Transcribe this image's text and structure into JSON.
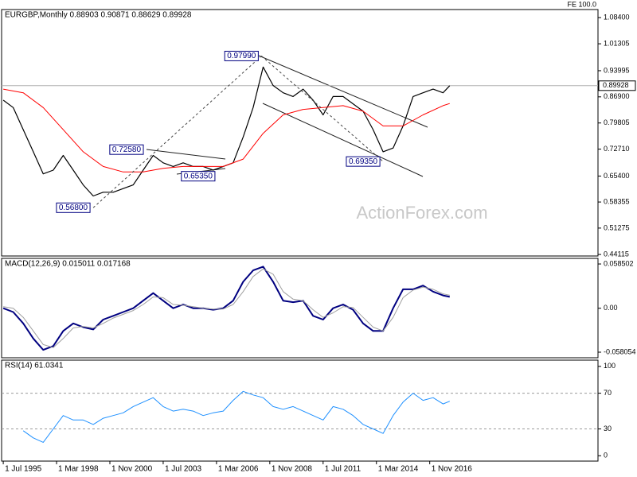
{
  "chart_data": [
    {
      "type": "line",
      "title": "EURGBP,Monthly  0.88903 0.90871 0.88629 0.89928",
      "label_right": "FE 100.0",
      "watermark": "ActionForex.com",
      "xlim": [
        -1,
        357
      ],
      "ylim": [
        0.437,
        1.106
      ],
      "yticks": [
        0.44115,
        0.51275,
        0.58355,
        {
          "value": 0.654,
          "label": "0.65400"
        },
        {
          "value": 0.7271,
          "label": "0.72710"
        },
        0.79805,
        {
          "value": 0.869,
          "label": "0.86900"
        },
        0.93995,
        1.01305,
        {
          "value": 1.084,
          "label": "1.08400"
        }
      ],
      "last_price": 0.89928,
      "series": [
        {
          "color": "#000000",
          "width": 1.2,
          "x": [
            0,
            6,
            12,
            18,
            24,
            30,
            36,
            42,
            48,
            54,
            60,
            66,
            72,
            78,
            84,
            90,
            96,
            102,
            108,
            114,
            120,
            126,
            132,
            138,
            144,
            150,
            156,
            162,
            168,
            174,
            180,
            186,
            192,
            198,
            204,
            210,
            216,
            222,
            228,
            234,
            240,
            246,
            252,
            258,
            264,
            268
          ],
          "values": [
            0.86,
            0.84,
            0.78,
            0.72,
            0.66,
            0.67,
            0.71,
            0.67,
            0.63,
            0.6,
            0.61,
            0.61,
            0.62,
            0.63,
            0.67,
            0.71,
            0.69,
            0.68,
            0.69,
            0.68,
            0.68,
            0.67,
            0.68,
            0.69,
            0.76,
            0.84,
            0.95,
            0.9,
            0.88,
            0.87,
            0.89,
            0.86,
            0.82,
            0.87,
            0.87,
            0.85,
            0.83,
            0.78,
            0.72,
            0.73,
            0.79,
            0.87,
            0.88,
            0.89,
            0.88,
            0.89928
          ]
        },
        {
          "color": "#ff0000",
          "width": 1,
          "x": [
            0,
            12,
            24,
            36,
            48,
            60,
            72,
            84,
            96,
            108,
            120,
            132,
            144,
            156,
            168,
            180,
            192,
            204,
            216,
            228,
            240,
            252,
            264,
            268
          ],
          "values": [
            0.89,
            0.88,
            0.84,
            0.78,
            0.72,
            0.68,
            0.665,
            0.665,
            0.675,
            0.68,
            0.68,
            0.68,
            0.7,
            0.77,
            0.82,
            0.835,
            0.84,
            0.845,
            0.83,
            0.79,
            0.79,
            0.82,
            0.845,
            0.851
          ]
        }
      ],
      "annotations": [
        {
          "value": 0.9799,
          "label": "0.97990",
          "x": 155,
          "side": "left"
        },
        {
          "value": 0.7258,
          "label": "0.72580",
          "x": 86,
          "side": "left"
        },
        {
          "value": 0.6535,
          "label": "0.65350",
          "x": 105,
          "side": "right"
        },
        {
          "value": 0.568,
          "label": "0.56800",
          "x": 54,
          "side": "left"
        },
        {
          "value": 0.6935,
          "label": "0.69350",
          "x": 228,
          "side": "left"
        }
      ]
    },
    {
      "type": "line",
      "title": "MACD(12,26,9) 0.015011 0.017168",
      "xlim": [
        -1,
        357
      ],
      "ylim": [
        -0.0654,
        0.0659
      ],
      "yticks": [
        0.058502,
        {
          "value": 0,
          "label": "0.00"
        },
        -0.058054
      ],
      "series": [
        {
          "color": "#000080",
          "width": 2,
          "x": [
            0,
            6,
            12,
            18,
            24,
            30,
            36,
            42,
            48,
            54,
            60,
            66,
            72,
            78,
            84,
            90,
            96,
            102,
            108,
            114,
            120,
            126,
            132,
            138,
            144,
            150,
            156,
            162,
            168,
            174,
            180,
            186,
            192,
            198,
            204,
            210,
            216,
            222,
            228,
            234,
            240,
            246,
            252,
            258,
            264,
            268
          ],
          "values": [
            0.0,
            -0.005,
            -0.02,
            -0.04,
            -0.055,
            -0.05,
            -0.03,
            -0.02,
            -0.025,
            -0.028,
            -0.015,
            -0.01,
            -0.005,
            0.0,
            0.01,
            0.02,
            0.01,
            0.0,
            0.005,
            0.0,
            0.0,
            -0.002,
            0.0,
            0.01,
            0.035,
            0.05,
            0.055,
            0.035,
            0.01,
            0.008,
            0.01,
            -0.01,
            -0.015,
            0.0,
            0.005,
            -0.002,
            -0.02,
            -0.03,
            -0.03,
            0.0,
            0.025,
            0.025,
            0.03,
            0.022,
            0.017,
            0.015011
          ]
        },
        {
          "color": "#a0a0a0",
          "width": 1,
          "x": [
            0,
            6,
            12,
            18,
            24,
            30,
            36,
            42,
            48,
            54,
            60,
            66,
            72,
            78,
            84,
            90,
            96,
            102,
            108,
            114,
            120,
            126,
            132,
            138,
            144,
            150,
            156,
            162,
            168,
            174,
            180,
            186,
            192,
            198,
            204,
            210,
            216,
            222,
            228,
            234,
            240,
            246,
            252,
            258,
            264,
            268
          ],
          "values": [
            0.002,
            0.0,
            -0.012,
            -0.03,
            -0.048,
            -0.052,
            -0.04,
            -0.026,
            -0.024,
            -0.026,
            -0.02,
            -0.013,
            -0.008,
            -0.003,
            0.005,
            0.015,
            0.014,
            0.005,
            0.004,
            0.002,
            0.0,
            -0.001,
            -0.001,
            0.005,
            0.022,
            0.042,
            0.052,
            0.045,
            0.022,
            0.012,
            0.01,
            -0.002,
            -0.012,
            -0.006,
            0.002,
            0.001,
            -0.012,
            -0.025,
            -0.03,
            -0.012,
            0.014,
            0.024,
            0.028,
            0.025,
            0.019,
            0.017168
          ]
        }
      ]
    },
    {
      "type": "line",
      "title": "RSI(14) 61.0341",
      "xlim": [
        -1,
        357
      ],
      "ylim": [
        -6,
        107
      ],
      "yticks": [
        100,
        70,
        30,
        0
      ],
      "levels": [
        70,
        30
      ],
      "xticks": [
        {
          "value": 0,
          "label": "1 Jul 1995"
        },
        {
          "value": 32,
          "label": "1 Mar 1998"
        },
        {
          "value": 64,
          "label": "1 Nov 2000"
        },
        {
          "value": 96,
          "label": "1 Jul 2003"
        },
        {
          "value": 128,
          "label": "1 Mar 2006"
        },
        {
          "value": 160,
          "label": "1 Nov 2008"
        },
        {
          "value": 192,
          "label": "1 Jul 2011"
        },
        {
          "value": 224,
          "label": "1 Mar 2014"
        },
        {
          "value": 256,
          "label": "1 Nov 2016"
        }
      ],
      "series": [
        {
          "color": "#1e90ff",
          "width": 1,
          "x": [
            0,
            6,
            12,
            18,
            24,
            30,
            36,
            42,
            48,
            54,
            60,
            66,
            72,
            78,
            84,
            90,
            96,
            102,
            108,
            114,
            120,
            126,
            132,
            138,
            144,
            150,
            156,
            162,
            168,
            174,
            180,
            186,
            192,
            198,
            204,
            210,
            216,
            222,
            228,
            234,
            240,
            246,
            252,
            258,
            264,
            268
          ],
          "values": [
            null,
            null,
            28,
            20,
            15,
            30,
            45,
            40,
            40,
            35,
            42,
            45,
            48,
            55,
            60,
            65,
            55,
            50,
            52,
            50,
            45,
            48,
            50,
            62,
            72,
            68,
            65,
            55,
            52,
            55,
            50,
            45,
            40,
            55,
            52,
            45,
            35,
            30,
            25,
            45,
            60,
            70,
            62,
            65,
            58,
            61.0341
          ]
        }
      ]
    }
  ]
}
